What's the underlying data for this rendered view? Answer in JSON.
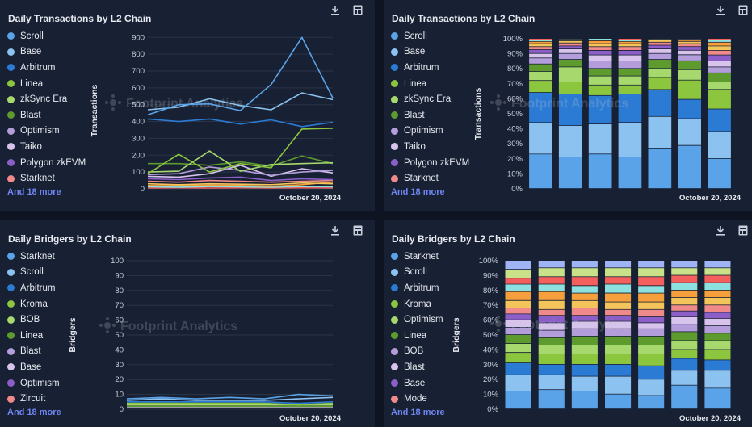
{
  "theme": {
    "panel_bg": "#182033",
    "page_bg": "#0e1421",
    "text": "#e6e9ef",
    "muted": "#c9d0dc",
    "link": "#6f86f2",
    "grid": "#2a3448"
  },
  "watermark": "Footprint Analytics",
  "toolbar": {
    "download_icon": "download-icon",
    "api_icon": "api-icon"
  },
  "panels": [
    {
      "title": "Daily Transactions by L2 Chain",
      "more": "And 18 more",
      "legend": [
        {
          "name": "Scroll",
          "color": "#5aa3e8"
        },
        {
          "name": "Base",
          "color": "#8bc2f0"
        },
        {
          "name": "Arbitrum",
          "color": "#2b7bd4"
        },
        {
          "name": "Linea",
          "color": "#8cc63f"
        },
        {
          "name": "zkSync Era",
          "color": "#a7d86e"
        },
        {
          "name": "Blast",
          "color": "#5e9b2f"
        },
        {
          "name": "Optimism",
          "color": "#b39ddb"
        },
        {
          "name": "Taiko",
          "color": "#d7c3ec"
        },
        {
          "name": "Polygon zkEVM",
          "color": "#8b5fc7"
        },
        {
          "name": "Starknet",
          "color": "#f08a8a"
        }
      ]
    },
    {
      "title": "Daily Transactions by L2 Chain",
      "more": "And 18 more",
      "legend": [
        {
          "name": "Scroll",
          "color": "#5aa3e8"
        },
        {
          "name": "Base",
          "color": "#8bc2f0"
        },
        {
          "name": "Arbitrum",
          "color": "#2b7bd4"
        },
        {
          "name": "Linea",
          "color": "#8cc63f"
        },
        {
          "name": "zkSync Era",
          "color": "#a7d86e"
        },
        {
          "name": "Blast",
          "color": "#5e9b2f"
        },
        {
          "name": "Optimism",
          "color": "#b39ddb"
        },
        {
          "name": "Taiko",
          "color": "#d7c3ec"
        },
        {
          "name": "Polygon zkEVM",
          "color": "#8b5fc7"
        },
        {
          "name": "Starknet",
          "color": "#f08a8a"
        }
      ]
    },
    {
      "title": "Daily Bridgers by L2 Chain",
      "more": "And 18 more",
      "legend": [
        {
          "name": "Starknet",
          "color": "#5aa3e8"
        },
        {
          "name": "Scroll",
          "color": "#8bc2f0"
        },
        {
          "name": "Arbitrum",
          "color": "#2b7bd4"
        },
        {
          "name": "Kroma",
          "color": "#8cc63f"
        },
        {
          "name": "BOB",
          "color": "#a7d86e"
        },
        {
          "name": "Linea",
          "color": "#5e9b2f"
        },
        {
          "name": "Blast",
          "color": "#b39ddb"
        },
        {
          "name": "Base",
          "color": "#d7c3ec"
        },
        {
          "name": "Optimism",
          "color": "#8b5fc7"
        },
        {
          "name": "Zircuit",
          "color": "#f08a8a"
        }
      ]
    },
    {
      "title": "Daily Bridgers by L2 Chain",
      "more": "And 18 more",
      "legend": [
        {
          "name": "Starknet",
          "color": "#5aa3e8"
        },
        {
          "name": "Scroll",
          "color": "#8bc2f0"
        },
        {
          "name": "Arbitrum",
          "color": "#2b7bd4"
        },
        {
          "name": "Kroma",
          "color": "#8cc63f"
        },
        {
          "name": "Optimism",
          "color": "#a7d86e"
        },
        {
          "name": "Linea",
          "color": "#5e9b2f"
        },
        {
          "name": "BOB",
          "color": "#b39ddb"
        },
        {
          "name": "Blast",
          "color": "#d7c3ec"
        },
        {
          "name": "Base",
          "color": "#8b5fc7"
        },
        {
          "name": "Mode",
          "color": "#f08a8a"
        }
      ]
    }
  ],
  "chart_data": [
    {
      "type": "line",
      "title": "Daily Transactions by L2 Chain",
      "ylabel": "Transactions",
      "xlabel": "",
      "x_tick_label": "October 20, 2024",
      "yticks": [
        0,
        100,
        200,
        300,
        400,
        500,
        600,
        700,
        800,
        900
      ],
      "ylim": [
        0,
        930
      ],
      "series": [
        {
          "name": "Scroll",
          "color": "#5aa3e8",
          "values": [
            440,
            500,
            505,
            465,
            620,
            900,
            540
          ]
        },
        {
          "name": "Base",
          "color": "#8bc2f0",
          "values": [
            470,
            485,
            535,
            495,
            470,
            570,
            530
          ]
        },
        {
          "name": "Arbitrum",
          "color": "#2b7bd4",
          "values": [
            415,
            400,
            415,
            385,
            410,
            370,
            395
          ]
        },
        {
          "name": "Linea",
          "color": "#8cc63f",
          "values": [
            90,
            205,
            100,
            150,
            125,
            355,
            360
          ]
        },
        {
          "name": "zkSync Era",
          "color": "#a7d86e",
          "values": [
            100,
            105,
            225,
            105,
            145,
            150,
            155
          ]
        },
        {
          "name": "Blast",
          "color": "#5e9b2f",
          "values": [
            150,
            150,
            140,
            160,
            135,
            195,
            150
          ]
        },
        {
          "name": "Optimism",
          "color": "#b39ddb",
          "values": [
            85,
            90,
            130,
            110,
            80,
            100,
            110
          ]
        },
        {
          "name": "Taiko",
          "color": "#d7c3ec",
          "values": [
            75,
            70,
            90,
            140,
            75,
            120,
            95
          ]
        },
        {
          "name": "Polygon zkEVM",
          "color": "#8b5fc7",
          "values": [
            60,
            55,
            65,
            70,
            50,
            60,
            55
          ]
        },
        {
          "name": "Starknet",
          "color": "#f08a8a",
          "values": [
            45,
            40,
            50,
            45,
            40,
            45,
            50
          ]
        },
        {
          "name": "",
          "color": "#f2c45a",
          "values": [
            30,
            25,
            30,
            28,
            25,
            35,
            30
          ]
        },
        {
          "name": "",
          "color": "#f5a03c",
          "values": [
            20,
            18,
            22,
            20,
            15,
            25,
            40
          ]
        },
        {
          "name": "",
          "color": "#8de0e0",
          "values": [
            12,
            10,
            14,
            12,
            10,
            14,
            12
          ]
        },
        {
          "name": "",
          "color": "#f25f5c",
          "values": [
            5,
            6,
            5,
            6,
            5,
            6,
            5
          ]
        }
      ]
    },
    {
      "type": "bar",
      "stacked_percent": true,
      "title": "Daily Transactions by L2 Chain",
      "ylabel": "Transactions",
      "x_tick_label": "October 20, 2024",
      "yticks": [
        "0%",
        "10%",
        "20%",
        "30%",
        "40%",
        "50%",
        "60%",
        "70%",
        "80%",
        "90%",
        "100%"
      ],
      "ylim": [
        0,
        100
      ],
      "palette": [
        "#5aa3e8",
        "#8bc2f0",
        "#2b7bd4",
        "#8cc63f",
        "#a7d86e",
        "#5e9b2f",
        "#b39ddb",
        "#d7c3ec",
        "#8b5fc7",
        "#f08a8a",
        "#f2c45a",
        "#f5a03c",
        "#8de0e0",
        "#f25f5c"
      ],
      "columns": [
        [
          23,
          21,
          20,
          8,
          6,
          5,
          4,
          3,
          2.5,
          2,
          2,
          1.5,
          1,
          1
        ],
        [
          21,
          21,
          21,
          8,
          10,
          5,
          4,
          3,
          2,
          2,
          1.5,
          1,
          0.5,
          0
        ],
        [
          23,
          20,
          19,
          7,
          6,
          5,
          5,
          4,
          3,
          2.5,
          2,
          2,
          1.5,
          0
        ],
        [
          21,
          23,
          19,
          6,
          6,
          5,
          5,
          4,
          3,
          2.5,
          2,
          1.5,
          1,
          1
        ],
        [
          27,
          21,
          18,
          8,
          6,
          6,
          4,
          3,
          2.5,
          2,
          1.5,
          0.5,
          0.5,
          0
        ],
        [
          29,
          18,
          13,
          13,
          7,
          6,
          4,
          3,
          2.5,
          2,
          1.5,
          1,
          0.5,
          0.5
        ],
        [
          20,
          18,
          15,
          13,
          5,
          6,
          4,
          4,
          4,
          3,
          3,
          2.5,
          1.5,
          1
        ]
      ]
    },
    {
      "type": "line",
      "title": "Daily Bridgers by L2 Chain",
      "ylabel": "Bridgers",
      "x_tick_label": "October 20, 2024",
      "yticks": [
        0,
        10,
        20,
        30,
        40,
        50,
        60,
        70,
        80,
        90,
        100
      ],
      "ylim": [
        0,
        100
      ],
      "series": [
        {
          "name": "Starknet",
          "color": "#5aa3e8",
          "values": [
            7,
            8,
            7,
            8,
            7,
            10,
            9
          ]
        },
        {
          "name": "Scroll",
          "color": "#8bc2f0",
          "values": [
            6,
            7,
            6,
            6,
            6,
            7,
            8
          ]
        },
        {
          "name": "Arbitrum",
          "color": "#2b7bd4",
          "values": [
            5,
            5,
            5,
            5,
            5,
            4,
            5
          ]
        },
        {
          "name": "Kroma",
          "color": "#8cc63f",
          "values": [
            4,
            4,
            4,
            4,
            4,
            3,
            4
          ]
        },
        {
          "name": "BOB",
          "color": "#a7d86e",
          "values": [
            3,
            3,
            3,
            3,
            3,
            3,
            3
          ]
        },
        {
          "name": "Linea",
          "color": "#5e9b2f",
          "values": [
            2,
            2,
            2,
            2,
            2,
            2,
            2
          ]
        },
        {
          "name": "Blast",
          "color": "#b39ddb",
          "values": [
            2,
            2,
            2,
            2,
            2,
            2,
            2
          ]
        },
        {
          "name": "Base",
          "color": "#d7c3ec",
          "values": [
            1,
            1,
            1,
            1,
            1,
            1,
            1
          ]
        }
      ]
    },
    {
      "type": "bar",
      "stacked_percent": true,
      "title": "Daily Bridgers by L2 Chain",
      "ylabel": "Bridgers",
      "x_tick_label": "October 20, 2024",
      "yticks": [
        "0%",
        "10%",
        "20%",
        "30%",
        "40%",
        "50%",
        "60%",
        "70%",
        "80%",
        "90%",
        "100%"
      ],
      "ylim": [
        0,
        100
      ],
      "palette": [
        "#5aa3e8",
        "#8bc2f0",
        "#2b7bd4",
        "#8cc63f",
        "#a7d86e",
        "#5e9b2f",
        "#b39ddb",
        "#d7c3ec",
        "#8b5fc7",
        "#f08a8a",
        "#f2c45a",
        "#f5a03c",
        "#8de0e0",
        "#f25f5c",
        "#c9e28a",
        "#9fb4f5"
      ],
      "columns": [
        [
          12,
          11,
          8,
          7,
          6,
          6,
          5,
          5,
          4,
          4,
          5,
          6,
          5,
          4,
          6,
          6
        ],
        [
          13,
          10,
          7,
          7,
          6,
          5,
          5,
          5,
          5,
          4,
          6,
          6,
          5,
          5,
          6,
          5
        ],
        [
          12,
          10,
          8,
          7,
          6,
          6,
          5,
          5,
          4,
          5,
          5,
          5,
          5,
          6,
          6,
          5
        ],
        [
          10,
          12,
          8,
          7,
          6,
          6,
          5,
          5,
          4,
          4,
          5,
          6,
          6,
          5,
          6,
          5
        ],
        [
          9,
          11,
          9,
          8,
          6,
          6,
          5,
          4,
          4,
          5,
          5,
          6,
          5,
          6,
          6,
          5
        ],
        [
          16,
          10,
          8,
          6,
          6,
          6,
          5,
          5,
          4,
          4,
          5,
          5,
          5,
          5,
          5,
          5
        ],
        [
          14,
          12,
          7,
          7,
          6,
          5,
          5,
          5,
          4,
          5,
          5,
          5,
          5,
          5,
          5,
          5
        ]
      ]
    }
  ]
}
